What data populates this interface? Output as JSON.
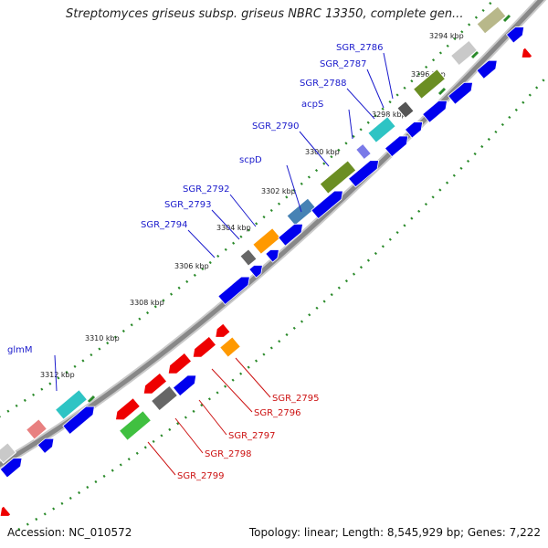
{
  "title": "Streptomyces griseus subsp. griseus NBRC 13350, complete gen...",
  "footer": {
    "accession": "Accession: NC_010572",
    "topology": "Topology: linear; Length: 8,545,929 bp; Genes: 7,222"
  },
  "ticks": [
    "3294 kbp",
    "3296 kbp",
    "3298 kbp",
    "3300 kbp",
    "3302 kbp",
    "3304 kbp",
    "3306 kbp",
    "3308 kbp",
    "3310 kbp",
    "3312 kbp"
  ],
  "forward_labels": [
    "SGR_2786",
    "SGR_2787",
    "SGR_2788",
    "acpS",
    "SGR_2790",
    "scpD",
    "SGR_2792",
    "SGR_2793",
    "SGR_2794",
    "glmM"
  ],
  "reverse_labels": [
    "SGR_2795",
    "SGR_2796",
    "SGR_2797",
    "SGR_2798",
    "SGR_2799"
  ],
  "colors": {
    "forward_label": "#1a1acc",
    "reverse_label": "#cc1111",
    "forward_gene": "#0000ee",
    "reverse_gene": "#ee0000",
    "backbone": "#888888",
    "tick": "#2a8a2a"
  }
}
